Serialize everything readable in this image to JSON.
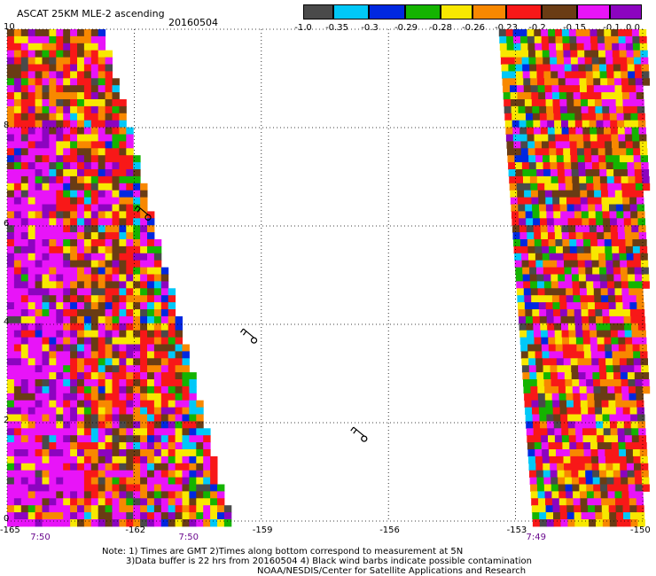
{
  "title": "ASCAT 25KM MLE-2 ascending",
  "date": "20160504",
  "colorbar": {
    "colors": [
      "#4a4a4a",
      "#00c8f8",
      "#0028e0",
      "#14b400",
      "#f8e800",
      "#f88800",
      "#f81818",
      "#6a3c14",
      "#e814f8",
      "#8c04c0"
    ],
    "labels": [
      "-1.0",
      "-0.35",
      "-0.3",
      "-0.29",
      "-0.28",
      "-0.26",
      "-0.23",
      "-0.2",
      "-0.15",
      "-0.1",
      "0.0"
    ]
  },
  "chart_data": {
    "type": "heatmap",
    "title": "ASCAT 25KM MLE-2 ascending",
    "date": "20160504",
    "x_ticks": [
      "-165",
      "-162",
      "-159",
      "-156",
      "-153",
      "-150"
    ],
    "y_ticks": [
      "0",
      "2",
      "4",
      "6",
      "8",
      "10"
    ],
    "xlim": [
      -165,
      -150
    ],
    "ylim": [
      0,
      10
    ],
    "grid": true,
    "grid_style": "dotted",
    "time_labels": [
      {
        "x": -164.2,
        "label": "7:50"
      },
      {
        "x": -160.7,
        "label": "7:50"
      },
      {
        "x": -152.5,
        "label": "7:49"
      }
    ],
    "swaths": [
      {
        "name": "west",
        "y_range": [
          0,
          10
        ],
        "west_edge": [
          -165,
          -165
        ],
        "east_edge": [
          -159.8,
          -162.8
        ]
      },
      {
        "name": "east",
        "y_range": [
          0,
          10
        ],
        "west_edge": [
          -152.6,
          -153.4
        ],
        "east_edge": [
          -150,
          -150
        ]
      }
    ],
    "wind_barbs": [
      {
        "x": -156.7,
        "y": 1.8
      },
      {
        "x": -159.3,
        "y": 3.8
      },
      {
        "x": -161.8,
        "y": 6.3
      }
    ]
  },
  "notes": {
    "line1": "Note: 1) Times are GMT 2)Times along bottom correspond to measurement at 5N",
    "line2": "3)Data buffer is 22 hrs from 20160504 4) Black wind barbs indicate possible contamination",
    "line3": "NOAA/NESDIS/Center for Satellite Applications and Research"
  }
}
